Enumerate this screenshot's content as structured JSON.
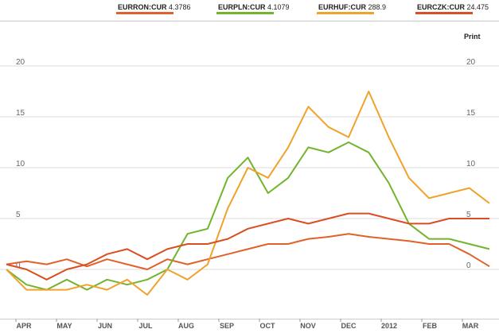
{
  "print_label": "Print",
  "chart_data": {
    "type": "line",
    "ylim": [
      -2,
      22
    ],
    "yticks": [
      0,
      5,
      10,
      15,
      20
    ],
    "grid": "horizontal",
    "legend_position": "top",
    "months": [
      "APR",
      "MAY",
      "JUN",
      "JUL",
      "AUG",
      "SEP",
      "OCT",
      "NOV",
      "DEC",
      "2012",
      "FEB",
      "MAR"
    ],
    "x": [
      "Apr 1",
      "Apr 15",
      "May 1",
      "May 15",
      "Jun 1",
      "Jun 15",
      "Jul 1",
      "Jul 15",
      "Aug 1",
      "Aug 15",
      "Sep 1",
      "Sep 15",
      "Oct 1",
      "Oct 15",
      "Nov 1",
      "Nov 15",
      "Dec 1",
      "Dec 15",
      "Jan 1",
      "Jan 15",
      "Feb 1",
      "Feb 15",
      "Mar 1",
      "Mar 15",
      "Mar 28"
    ],
    "series": [
      {
        "name": "EURRON:CUR",
        "legend_value": "4.3786",
        "color": "#e0622a",
        "values": [
          0.5,
          0.8,
          0.5,
          1.0,
          0.3,
          1.0,
          0.5,
          0.0,
          1.0,
          0.5,
          1.0,
          1.5,
          2.0,
          2.5,
          2.5,
          3.0,
          3.2,
          3.5,
          3.2,
          3.0,
          2.8,
          2.5,
          2.5,
          1.5,
          0.3
        ]
      },
      {
        "name": "EURPLN:CUR",
        "legend_value": "4.1079",
        "color": "#72b42e",
        "values": [
          0.0,
          -1.5,
          -2.0,
          -1.0,
          -2.0,
          -1.0,
          -1.5,
          -1.0,
          0.0,
          3.5,
          4.0,
          9.0,
          11.0,
          7.5,
          9.0,
          12.0,
          11.5,
          12.5,
          11.5,
          8.5,
          4.5,
          3.0,
          3.0,
          2.5,
          2.0
        ]
      },
      {
        "name": "EURHUF:CUR",
        "legend_value": "288.9",
        "color": "#f0a22c",
        "values": [
          0.0,
          -2.0,
          -2.0,
          -2.0,
          -1.5,
          -2.0,
          -1.0,
          -2.5,
          0.0,
          -1.0,
          0.5,
          6.0,
          10.0,
          9.0,
          12.0,
          16.0,
          14.0,
          13.0,
          17.5,
          13.0,
          9.0,
          7.0,
          7.5,
          8.0,
          6.5
        ]
      },
      {
        "name": "EURCZK:CUR",
        "legend_value": "24.475",
        "color": "#d94f22",
        "values": [
          0.5,
          0.0,
          -1.0,
          0.0,
          0.5,
          1.5,
          2.0,
          1.0,
          2.0,
          2.5,
          2.5,
          3.0,
          4.0,
          4.5,
          5.0,
          4.5,
          5.0,
          5.5,
          5.5,
          5.0,
          4.5,
          4.5,
          5.0,
          5.0,
          5.0
        ]
      }
    ]
  }
}
